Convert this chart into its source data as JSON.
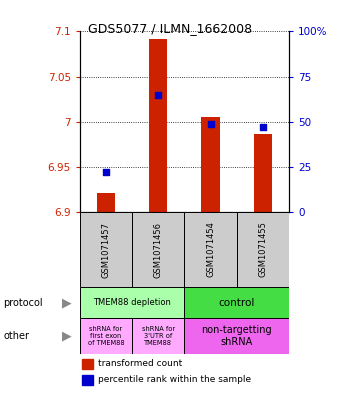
{
  "title": "GDS5077 / ILMN_1662008",
  "samples": [
    "GSM1071457",
    "GSM1071456",
    "GSM1071454",
    "GSM1071455"
  ],
  "bar_values": [
    6.921,
    7.092,
    7.005,
    6.987
  ],
  "bar_bottom": 6.9,
  "percentile_values": [
    22,
    65,
    49,
    47
  ],
  "ylim": [
    6.9,
    7.1
  ],
  "yticks_left": [
    6.9,
    6.95,
    7.0,
    7.05,
    7.1
  ],
  "yticks_right": [
    0,
    25,
    50,
    75,
    100
  ],
  "bar_color": "#cc2200",
  "dot_color": "#0000cc",
  "protocol_color_left": "#aaffaa",
  "protocol_color_right": "#44dd44",
  "other_color_left": "#ffaaff",
  "other_color_right": "#ee66ee",
  "sample_bg": "#cccccc",
  "legend_red": "transformed count",
  "legend_blue": "percentile rank within the sample",
  "label_color_left": "#cc2200",
  "label_color_right": "#0000cc"
}
